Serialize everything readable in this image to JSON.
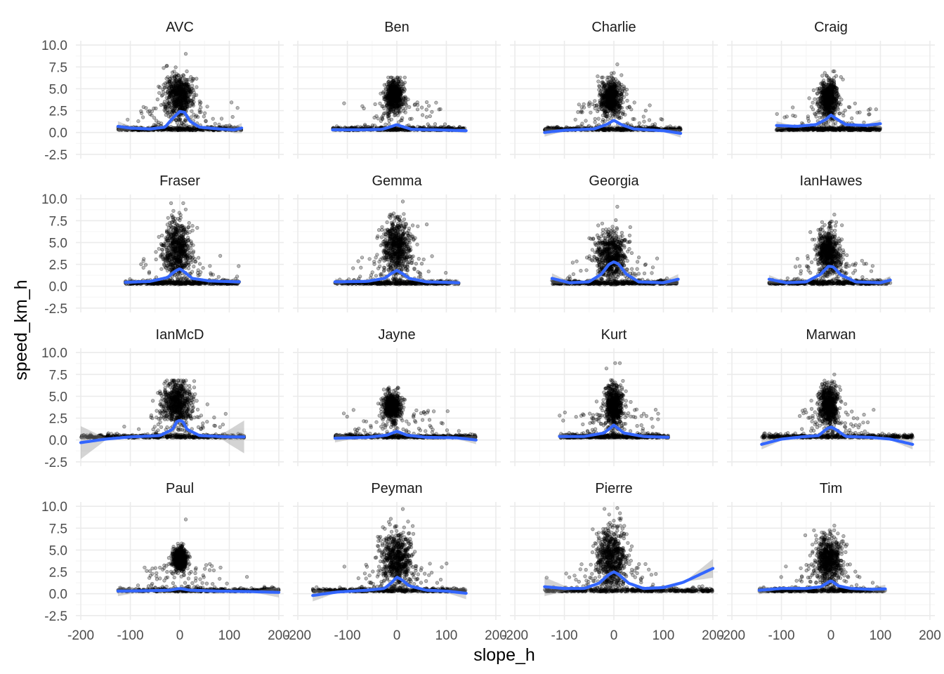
{
  "chart_data": {
    "type": "scatter",
    "layout": "facet_wrap_4x4",
    "xlabel": "slope_h",
    "ylabel": "speed_km_h",
    "xlim": [
      -210,
      210
    ],
    "ylim": [
      -3,
      10.5
    ],
    "x_ticks": [
      -200,
      -100,
      0,
      100,
      200
    ],
    "x_tick_labels": [
      "-200",
      "-100",
      "0",
      "100",
      "200"
    ],
    "y_ticks": [
      -2.5,
      0,
      2.5,
      5,
      7.5,
      10
    ],
    "y_tick_labels": [
      "-2.5",
      "0.0",
      "2.5",
      "5.0",
      "7.5",
      "10.0"
    ],
    "grid": true,
    "colors": {
      "points": "#000000",
      "smooth_line": "#3366FF",
      "ribbon": "#999999",
      "grid_major": "#ebebeb",
      "grid_minor": "#f5f5f5"
    },
    "panels": [
      {
        "name": "AVC",
        "xrange": [
          -125,
          125
        ],
        "clusters": [
          {
            "x": 0,
            "y": 4.2,
            "sx": 14,
            "sy": 1.2
          }
        ],
        "ymax": 9.0,
        "smooth": [
          [
            -125,
            0.7
          ],
          [
            -100,
            0.5
          ],
          [
            -60,
            0.4
          ],
          [
            -30,
            0.6
          ],
          [
            -15,
            1.6
          ],
          [
            0,
            2.4
          ],
          [
            10,
            2.3
          ],
          [
            20,
            1.3
          ],
          [
            40,
            0.6
          ],
          [
            80,
            0.4
          ],
          [
            110,
            0.3
          ],
          [
            125,
            0.5
          ]
        ],
        "ribbon_ends": 0.5
      },
      {
        "name": "Ben",
        "xrange": [
          -130,
          140
        ],
        "clusters": [
          {
            "x": -5,
            "y": 4.3,
            "sx": 9,
            "sy": 0.8
          }
        ],
        "ymax": 6.3,
        "smooth": [
          [
            -130,
            0.3
          ],
          [
            -80,
            0.3
          ],
          [
            -30,
            0.35
          ],
          [
            -10,
            0.7
          ],
          [
            0,
            0.9
          ],
          [
            10,
            0.7
          ],
          [
            30,
            0.35
          ],
          [
            80,
            0.3
          ],
          [
            140,
            0.2
          ]
        ],
        "ribbon_ends": 0.2
      },
      {
        "name": "Charlie",
        "xrange": [
          -140,
          135
        ],
        "clusters": [
          {
            "x": -5,
            "y": 4.0,
            "sx": 11,
            "sy": 1.0
          }
        ],
        "ymax": 7.8,
        "smooth": [
          [
            -140,
            0.0
          ],
          [
            -100,
            0.25
          ],
          [
            -40,
            0.4
          ],
          [
            -15,
            0.9
          ],
          [
            0,
            1.4
          ],
          [
            15,
            0.9
          ],
          [
            40,
            0.4
          ],
          [
            100,
            0.2
          ],
          [
            135,
            -0.1
          ]
        ],
        "ribbon_ends": 0.4
      },
      {
        "name": "Craig",
        "xrange": [
          -110,
          100
        ],
        "clusters": [
          {
            "x": -5,
            "y": 4.0,
            "sx": 9,
            "sy": 1.0
          }
        ],
        "ymax": 7.0,
        "smooth": [
          [
            -110,
            0.8
          ],
          [
            -70,
            0.7
          ],
          [
            -30,
            0.9
          ],
          [
            -10,
            1.5
          ],
          [
            0,
            2.0
          ],
          [
            10,
            1.6
          ],
          [
            30,
            0.9
          ],
          [
            70,
            0.8
          ],
          [
            100,
            1.0
          ]
        ],
        "ribbon_ends": 0.4
      },
      {
        "name": "Fraser",
        "xrange": [
          -110,
          120
        ],
        "clusters": [
          {
            "x": -5,
            "y": 4.3,
            "sx": 14,
            "sy": 1.5
          }
        ],
        "ymax": 9.5,
        "smooth": [
          [
            -110,
            0.45
          ],
          [
            -60,
            0.55
          ],
          [
            -25,
            1.0
          ],
          [
            -10,
            1.7
          ],
          [
            0,
            2.0
          ],
          [
            10,
            1.6
          ],
          [
            25,
            0.9
          ],
          [
            60,
            0.6
          ],
          [
            120,
            0.5
          ]
        ],
        "ribbon_ends": 0.2
      },
      {
        "name": "Gemma",
        "xrange": [
          -125,
          125
        ],
        "clusters": [
          {
            "x": 0,
            "y": 4.5,
            "sx": 14,
            "sy": 1.5
          }
        ],
        "ymax": 9.7,
        "smooth": [
          [
            -125,
            0.5
          ],
          [
            -60,
            0.55
          ],
          [
            -25,
            0.9
          ],
          [
            -10,
            1.5
          ],
          [
            0,
            1.8
          ],
          [
            10,
            1.5
          ],
          [
            25,
            0.9
          ],
          [
            60,
            0.5
          ],
          [
            125,
            0.4
          ]
        ],
        "ribbon_ends": 0.3
      },
      {
        "name": "Georgia",
        "xrange": [
          -125,
          130
        ],
        "clusters": [
          {
            "x": -5,
            "y": 3.6,
            "sx": 15,
            "sy": 1.4
          }
        ],
        "ymax": 9.1,
        "smooth": [
          [
            -125,
            0.9
          ],
          [
            -90,
            0.4
          ],
          [
            -50,
            0.5
          ],
          [
            -25,
            1.4
          ],
          [
            -10,
            2.5
          ],
          [
            0,
            2.8
          ],
          [
            10,
            2.5
          ],
          [
            25,
            1.4
          ],
          [
            50,
            0.5
          ],
          [
            100,
            0.4
          ],
          [
            130,
            0.8
          ]
        ],
        "ribbon_ends": 0.5
      },
      {
        "name": "IanHawes",
        "xrange": [
          -125,
          120
        ],
        "clusters": [
          {
            "x": -5,
            "y": 4.0,
            "sx": 12,
            "sy": 1.3
          }
        ],
        "ymax": 8.2,
        "smooth": [
          [
            -125,
            0.8
          ],
          [
            -90,
            0.4
          ],
          [
            -50,
            0.5
          ],
          [
            -20,
            1.4
          ],
          [
            -5,
            2.3
          ],
          [
            5,
            2.2
          ],
          [
            20,
            1.3
          ],
          [
            50,
            0.5
          ],
          [
            100,
            0.4
          ],
          [
            120,
            0.7
          ]
        ],
        "ribbon_ends": 0.4
      },
      {
        "name": "IanMcD",
        "xrange": [
          -200,
          130
        ],
        "clusters": [
          {
            "x": -5,
            "y": 4.3,
            "sx": 15,
            "sy": 1.2
          }
        ],
        "ymax": 6.8,
        "smooth": [
          [
            -200,
            -0.3
          ],
          [
            -150,
            0.1
          ],
          [
            -100,
            0.35
          ],
          [
            -40,
            0.5
          ],
          [
            -15,
            1.2
          ],
          [
            -5,
            2.2
          ],
          [
            5,
            2.2
          ],
          [
            15,
            1.2
          ],
          [
            40,
            0.5
          ],
          [
            100,
            0.35
          ],
          [
            130,
            0.35
          ]
        ],
        "ribbon_ends": 1.8
      },
      {
        "name": "Jayne",
        "xrange": [
          -125,
          160
        ],
        "clusters": [
          {
            "x": -10,
            "y": 3.8,
            "sx": 8,
            "sy": 0.8
          }
        ],
        "ymax": 6.0,
        "smooth": [
          [
            -125,
            0.2
          ],
          [
            -60,
            0.3
          ],
          [
            -20,
            0.55
          ],
          [
            0,
            1.0
          ],
          [
            20,
            0.55
          ],
          [
            60,
            0.3
          ],
          [
            120,
            0.25
          ],
          [
            160,
            0.0
          ]
        ],
        "ribbon_ends": 0.4
      },
      {
        "name": "Kurt",
        "xrange": [
          -110,
          110
        ],
        "clusters": [
          {
            "x": 0,
            "y": 4.0,
            "sx": 9,
            "sy": 1.2
          }
        ],
        "ymax": 8.8,
        "smooth": [
          [
            -110,
            0.4
          ],
          [
            -60,
            0.4
          ],
          [
            -20,
            0.8
          ],
          [
            0,
            1.7
          ],
          [
            20,
            0.8
          ],
          [
            60,
            0.4
          ],
          [
            110,
            0.3
          ]
        ],
        "ribbon_ends": 0.2
      },
      {
        "name": "Marwan",
        "xrange": [
          -140,
          165
        ],
        "clusters": [
          {
            "x": -5,
            "y": 4.0,
            "sx": 10,
            "sy": 1.1
          }
        ],
        "ymax": 7.5,
        "smooth": [
          [
            -140,
            -0.5
          ],
          [
            -100,
            0.1
          ],
          [
            -60,
            0.35
          ],
          [
            -25,
            0.5
          ],
          [
            -8,
            1.3
          ],
          [
            0,
            1.5
          ],
          [
            10,
            1.2
          ],
          [
            30,
            0.4
          ],
          [
            80,
            0.3
          ],
          [
            120,
            0.1
          ],
          [
            165,
            -0.5
          ]
        ],
        "ribbon_ends": 0.5
      },
      {
        "name": "Paul",
        "xrange": [
          -125,
          200
        ],
        "clusters": [
          {
            "x": 0,
            "y": 4.0,
            "sx": 7,
            "sy": 0.6
          }
        ],
        "ymax": 8.5,
        "smooth": [
          [
            -125,
            0.3
          ],
          [
            -60,
            0.35
          ],
          [
            -20,
            0.4
          ],
          [
            0,
            0.6
          ],
          [
            20,
            0.4
          ],
          [
            80,
            0.3
          ],
          [
            140,
            0.25
          ],
          [
            200,
            0.15
          ]
        ],
        "ribbon_ends": 0.5
      },
      {
        "name": "Peyman",
        "xrange": [
          -170,
          140
        ],
        "clusters": [
          {
            "x": 0,
            "y": 4.0,
            "sx": 15,
            "sy": 1.5
          }
        ],
        "ymax": 9.7,
        "smooth": [
          [
            -170,
            -0.2
          ],
          [
            -120,
            0.2
          ],
          [
            -60,
            0.4
          ],
          [
            -25,
            0.6
          ],
          [
            -10,
            1.3
          ],
          [
            0,
            1.9
          ],
          [
            10,
            1.6
          ],
          [
            25,
            0.9
          ],
          [
            60,
            0.4
          ],
          [
            100,
            0.3
          ],
          [
            140,
            0.05
          ]
        ],
        "ribbon_ends": 0.6
      },
      {
        "name": "Pierre",
        "xrange": [
          -140,
          200
        ],
        "clusters": [
          {
            "x": -5,
            "y": 4.3,
            "sx": 16,
            "sy": 1.6
          }
        ],
        "ymax": 9.8,
        "smooth": [
          [
            -140,
            0.8
          ],
          [
            -100,
            0.6
          ],
          [
            -60,
            0.6
          ],
          [
            -30,
            1.2
          ],
          [
            -10,
            2.2
          ],
          [
            0,
            2.5
          ],
          [
            10,
            2.2
          ],
          [
            30,
            1.2
          ],
          [
            60,
            0.6
          ],
          [
            100,
            0.7
          ],
          [
            140,
            1.3
          ],
          [
            170,
            2.1
          ],
          [
            200,
            2.9
          ]
        ],
        "ribbon_ends": 1.0
      },
      {
        "name": "Tim",
        "xrange": [
          -145,
          110
        ],
        "clusters": [
          {
            "x": -5,
            "y": 4.0,
            "sx": 14,
            "sy": 1.3
          }
        ],
        "ymax": 7.8,
        "smooth": [
          [
            -145,
            0.4
          ],
          [
            -100,
            0.6
          ],
          [
            -50,
            0.6
          ],
          [
            -20,
            0.8
          ],
          [
            0,
            1.5
          ],
          [
            15,
            0.9
          ],
          [
            40,
            0.6
          ],
          [
            80,
            0.5
          ],
          [
            110,
            0.55
          ]
        ],
        "ribbon_ends": 0.4
      }
    ]
  }
}
